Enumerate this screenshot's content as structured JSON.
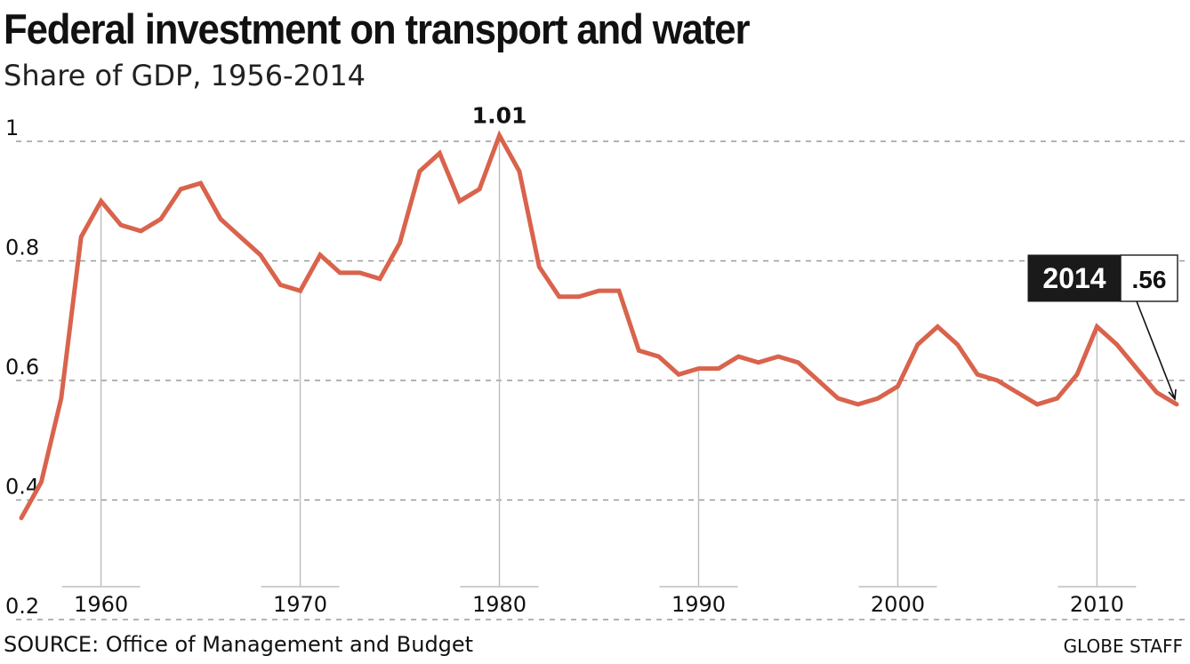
{
  "title": "Federal investment on transport and water",
  "subtitle": "Share of GDP, 1956-2014",
  "source": "SOURCE: Office of Management and Budget",
  "credit": "GLOBE STAFF",
  "colors": {
    "line": "#d9634c",
    "grid": "#9a9a9a",
    "vertical_guides": "#bdbdbd",
    "label_box": "#1a1a1a",
    "text": "#111111"
  },
  "chart_data": {
    "type": "line",
    "title": "Federal investment on transport and water",
    "subtitle": "Share of GDP, 1956-2014",
    "xlabel": "",
    "ylabel": "",
    "xlim": [
      1956,
      2014
    ],
    "ylim": [
      0.2,
      1.0
    ],
    "y_ticks": [
      0.2,
      0.4,
      0.6,
      0.8,
      1.0
    ],
    "y_tick_labels": [
      "0.2",
      "0.4",
      "0.6",
      "0.8",
      "1"
    ],
    "x_ticks": [
      1960,
      1970,
      1980,
      1990,
      2000,
      2010
    ],
    "x_tick_labels": [
      "1960",
      "1970",
      "1980",
      "1990",
      "2000",
      "2010"
    ],
    "grid": "horizontal dashed",
    "x": [
      1956,
      1957,
      1958,
      1959,
      1960,
      1961,
      1962,
      1963,
      1964,
      1965,
      1966,
      1967,
      1968,
      1969,
      1970,
      1971,
      1972,
      1973,
      1974,
      1975,
      1976,
      1977,
      1978,
      1979,
      1980,
      1981,
      1982,
      1983,
      1984,
      1985,
      1986,
      1987,
      1988,
      1989,
      1990,
      1991,
      1992,
      1993,
      1994,
      1995,
      1996,
      1997,
      1998,
      1999,
      2000,
      2001,
      2002,
      2003,
      2004,
      2005,
      2006,
      2007,
      2008,
      2009,
      2010,
      2011,
      2012,
      2013,
      2014
    ],
    "series": [
      {
        "values": [
          0.37,
          0.43,
          0.57,
          0.84,
          0.9,
          0.86,
          0.85,
          0.87,
          0.92,
          0.93,
          0.87,
          0.84,
          0.81,
          0.76,
          0.75,
          0.81,
          0.78,
          0.78,
          0.77,
          0.83,
          0.95,
          0.98,
          0.9,
          0.92,
          1.01,
          0.95,
          0.79,
          0.74,
          0.74,
          0.75,
          0.75,
          0.65,
          0.64,
          0.61,
          0.62,
          0.62,
          0.64,
          0.63,
          0.64,
          0.63,
          0.6,
          0.57,
          0.56,
          0.57,
          0.59,
          0.66,
          0.69,
          0.66,
          0.61,
          0.6,
          0.58,
          0.56,
          0.57,
          0.61,
          0.69,
          0.66,
          0.62,
          0.58,
          0.56
        ]
      }
    ],
    "annotations": [
      {
        "text": "1.01",
        "x": 1980,
        "y": 1.01
      },
      {
        "text": "2014",
        "value_text": ".56",
        "x": 2014,
        "y": 0.56
      }
    ]
  }
}
